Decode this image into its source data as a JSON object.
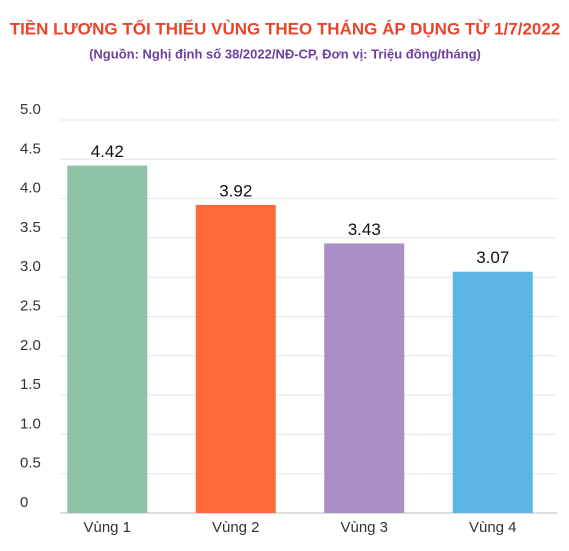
{
  "chart_data": {
    "type": "bar",
    "title": "TIỀN LƯƠNG TỐI THIỂU VÙNG THEO THÁNG ÁP DỤNG TỪ 1/7/2022",
    "subtitle": "(Nguồn: Nghị định số 38/2022/NĐ-CP, Đơn vị: Triệu đồng/tháng)",
    "categories": [
      "Vùng 1",
      "Vùng 2",
      "Vùng 3",
      "Vùng 4"
    ],
    "values": [
      4.42,
      3.92,
      3.43,
      3.07
    ],
    "colors": [
      "#8ec3a7",
      "#fd6a3a",
      "#a98fc6",
      "#5cb5e3"
    ],
    "ylim": [
      0,
      5
    ],
    "yticks": [
      0,
      0.5,
      {
        "value": 1,
        "label": "1.0"
      },
      1.5,
      {
        "value": 2,
        "label": "2.0"
      },
      2.5,
      {
        "value": 3,
        "label": "3.0"
      },
      3.5,
      {
        "value": 4,
        "label": "4.0"
      },
      4.5,
      {
        "value": 5,
        "label": "5.0"
      }
    ],
    "grid": true
  }
}
